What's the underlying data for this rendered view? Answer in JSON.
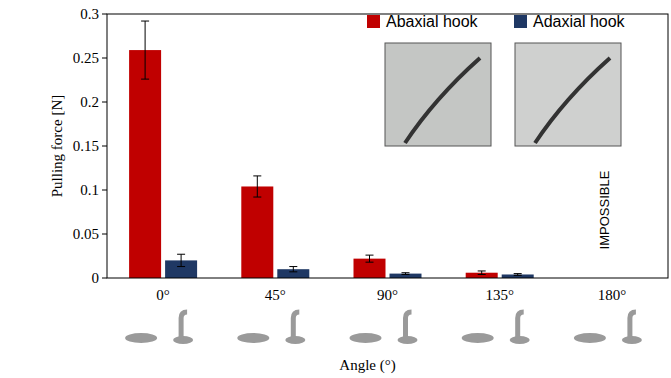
{
  "chart_data": {
    "type": "bar",
    "x_label": "Angle (°)",
    "y_label": "Pulling force [N]",
    "categories": [
      "0°",
      "45°",
      "90°",
      "135°",
      "180°"
    ],
    "series": [
      {
        "name": "Abaxial hook",
        "color": "#c00000",
        "values": [
          0.259,
          0.104,
          0.022,
          0.006,
          null
        ],
        "errors": [
          0.033,
          0.012,
          0.004,
          0.002,
          null
        ]
      },
      {
        "name": "Adaxial hook",
        "color": "#1f3864",
        "values": [
          0.02,
          0.01,
          0.005,
          0.004,
          null
        ],
        "errors": [
          0.007,
          0.003,
          0.001,
          0.001,
          null
        ]
      }
    ],
    "ylim": [
      0,
      0.3
    ],
    "yticks": [
      0,
      0.05,
      0.1,
      0.15,
      0.2,
      0.25,
      0.3
    ],
    "legend": "top-right",
    "annotations": [
      {
        "text": "IMPOSSIBLE",
        "category": "180°"
      }
    ]
  }
}
